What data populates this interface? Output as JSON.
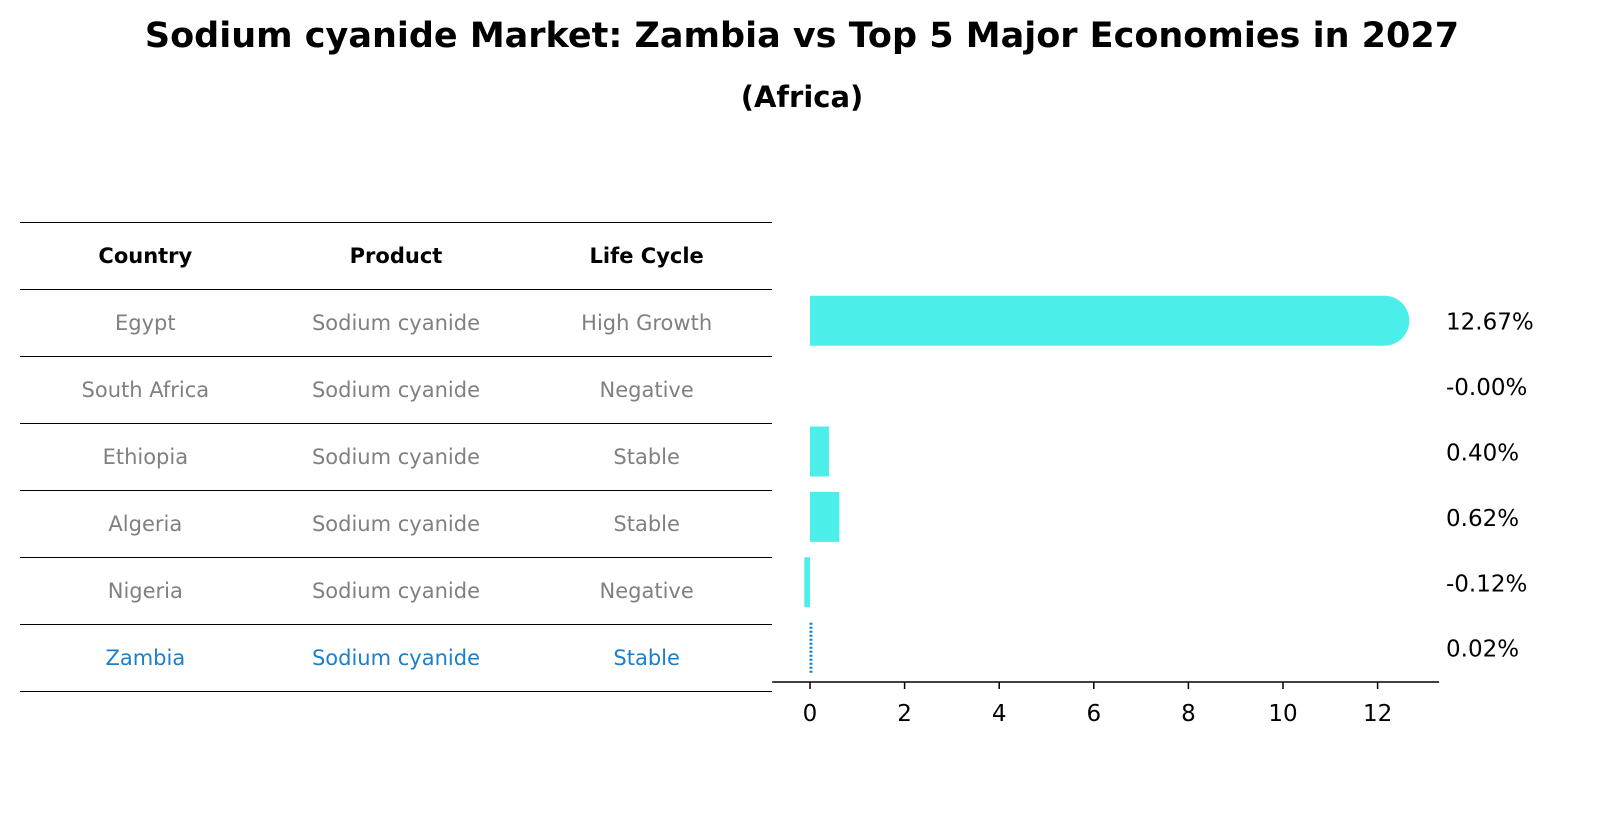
{
  "title": "Sodium cyanide Market: Zambia vs Top 5 Major Economies in 2027",
  "subtitle": "(Africa)",
  "table": {
    "headers": [
      "Country",
      "Product",
      "Life Cycle"
    ],
    "rows": [
      {
        "country": "Egypt",
        "product": "Sodium cyanide",
        "life_cycle": "High Growth"
      },
      {
        "country": "South Africa",
        "product": "Sodium cyanide",
        "life_cycle": "Negative"
      },
      {
        "country": "Ethiopia",
        "product": "Sodium cyanide",
        "life_cycle": "Stable"
      },
      {
        "country": "Algeria",
        "product": "Sodium cyanide",
        "life_cycle": "Stable"
      },
      {
        "country": "Nigeria",
        "product": "Sodium cyanide",
        "life_cycle": "Negative"
      },
      {
        "country": "Zambia",
        "product": "Sodium cyanide",
        "life_cycle": "Stable"
      }
    ]
  },
  "chart_data": {
    "type": "bar",
    "orientation": "horizontal",
    "categories": [
      "Egypt",
      "South Africa",
      "Ethiopia",
      "Algeria",
      "Nigeria",
      "Zambia"
    ],
    "values": [
      12.67,
      -0.0,
      0.4,
      0.62,
      -0.12,
      0.02
    ],
    "labels": [
      "12.67%",
      "-0.00%",
      "0.40%",
      "0.62%",
      "-0.12%",
      "0.02%"
    ],
    "xlim": [
      -0.8,
      13.3
    ],
    "xticks": [
      "0",
      "2",
      "4",
      "6",
      "8",
      "10",
      "12"
    ],
    "xtick_values": [
      0,
      2,
      4,
      6,
      8,
      10,
      12
    ],
    "highlight": "Zambia",
    "bar_color": "#4beee8",
    "highlight_color": "#1a7fcc"
  }
}
